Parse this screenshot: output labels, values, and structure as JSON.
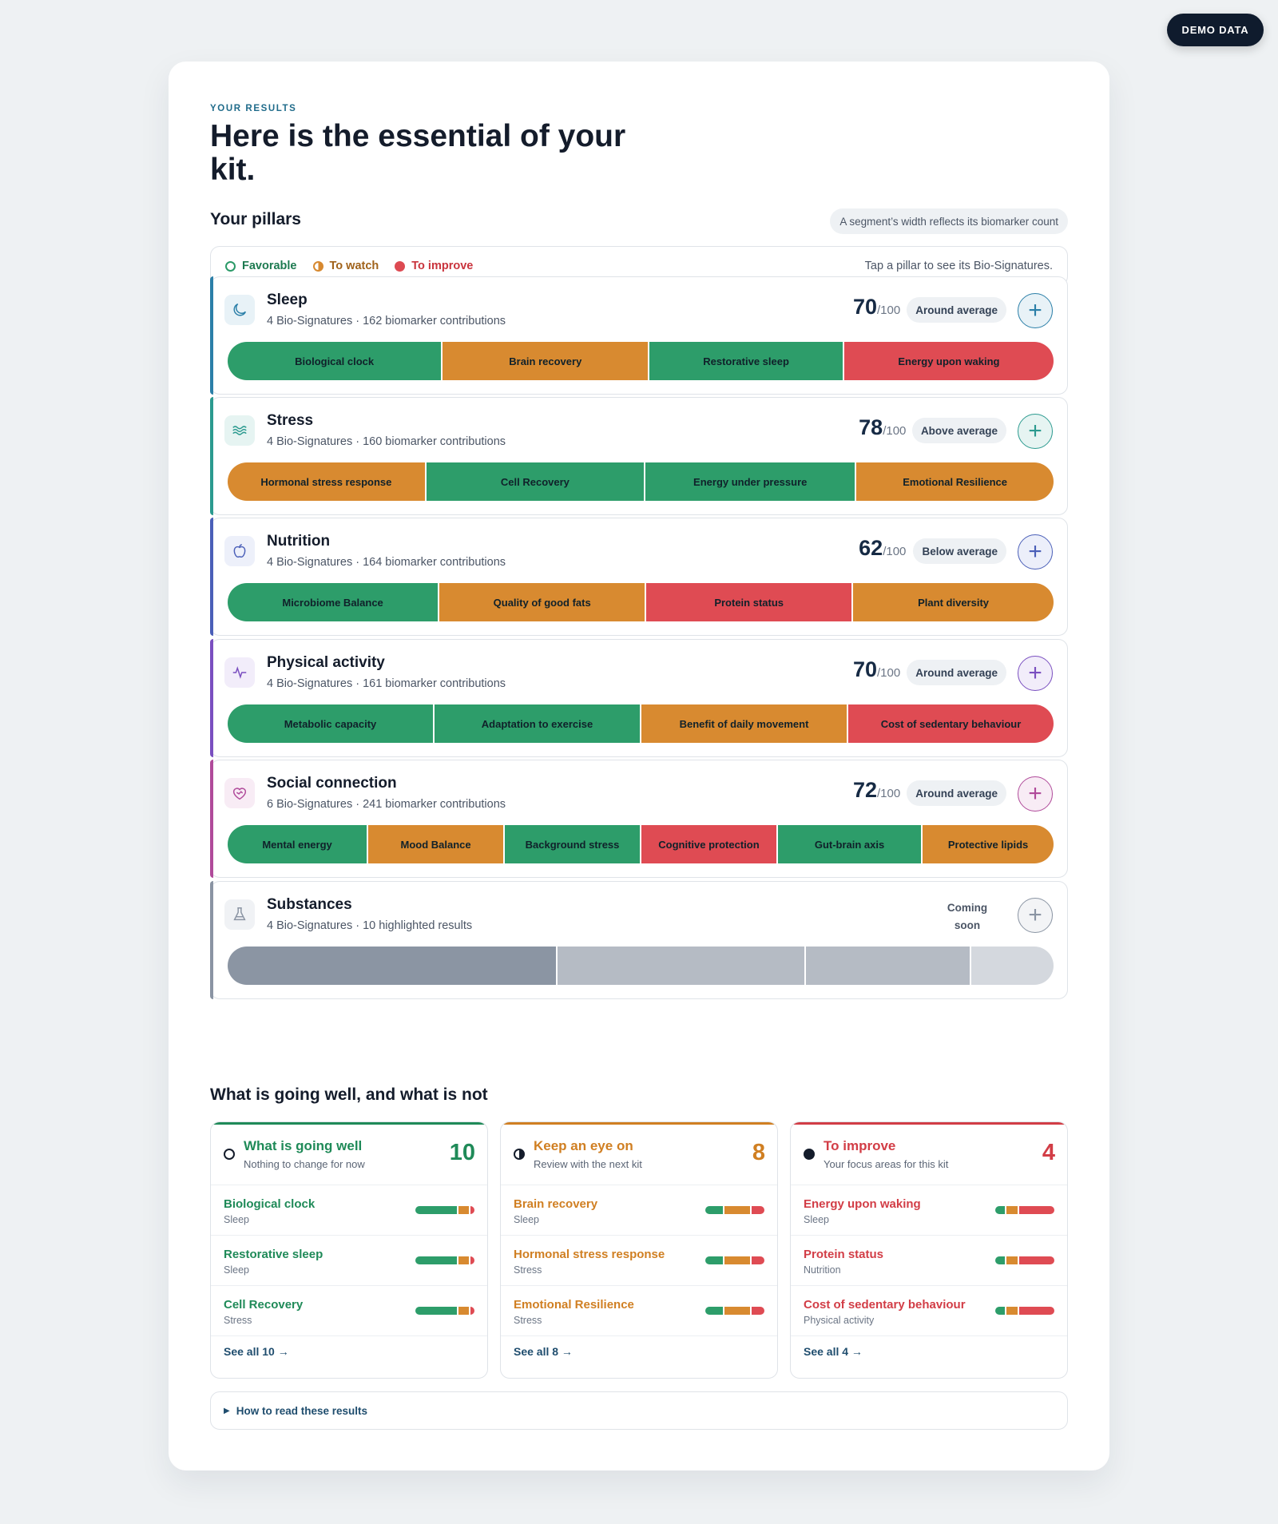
{
  "demo_badge": "DEMO DATA",
  "header": {
    "eyebrow": "YOUR RESULTS",
    "title": "Here is the essential of your kit."
  },
  "pillars_section": {
    "title": "Your pillars",
    "width_hint": "A segment’s width reflects its biomarker count",
    "legend": {
      "favorable": "Favorable",
      "to_watch": "To watch",
      "to_improve": "To improve",
      "tip": "Tap a pillar to see its Bio-Signatures."
    }
  },
  "colors": {
    "favorable": "#2d9d6a",
    "to_watch": "#d88a30",
    "to_improve": "#df4b53",
    "navy": "#0f1b2d"
  },
  "pillars": [
    {
      "name": "Sleep",
      "subtitle": "4 Bio-Signatures · 162 biomarker contributions",
      "score": "70",
      "of": "/100",
      "rating": "Around average",
      "icon": "moon-icon",
      "accent": "#2b7fa8",
      "segments": [
        {
          "label": "Biological clock",
          "status": "favorable",
          "weight": 26
        },
        {
          "label": "Brain recovery",
          "status": "to_watch",
          "weight": 25
        },
        {
          "label": "Restorative sleep",
          "status": "favorable",
          "weight": 23.5
        },
        {
          "label": "Energy upon waking",
          "status": "to_improve",
          "weight": 25.5
        }
      ]
    },
    {
      "name": "Stress",
      "subtitle": "4 Bio-Signatures · 160 biomarker contributions",
      "score": "78",
      "of": "/100",
      "rating": "Above average",
      "icon": "waves-icon",
      "accent": "#2b9a8f",
      "segments": [
        {
          "label": "Hormonal stress response",
          "status": "to_watch",
          "weight": 24
        },
        {
          "label": "Cell Recovery",
          "status": "favorable",
          "weight": 26.5
        },
        {
          "label": "Energy under pressure",
          "status": "favorable",
          "weight": 25.5
        },
        {
          "label": "Emotional Resilience",
          "status": "to_watch",
          "weight": 24
        }
      ]
    },
    {
      "name": "Nutrition",
      "subtitle": "4 Bio-Signatures · 164 biomarker contributions",
      "score": "62",
      "of": "/100",
      "rating": "Below average",
      "icon": "apple-icon",
      "accent": "#4a5fb8",
      "segments": [
        {
          "label": "Microbiome Balance",
          "status": "favorable",
          "weight": 25.6
        },
        {
          "label": "Quality of good fats",
          "status": "to_watch",
          "weight": 25
        },
        {
          "label": "Protein status",
          "status": "to_improve",
          "weight": 25
        },
        {
          "label": "Plant diversity",
          "status": "to_watch",
          "weight": 24.4
        }
      ]
    },
    {
      "name": "Physical activity",
      "subtitle": "4 Bio-Signatures · 161 biomarker contributions",
      "score": "70",
      "of": "/100",
      "rating": "Around average",
      "icon": "pulse-icon",
      "accent": "#7a4fc0",
      "segments": [
        {
          "label": "Metabolic capacity",
          "status": "favorable",
          "weight": 25
        },
        {
          "label": "Adaptation to exercise",
          "status": "favorable",
          "weight": 25
        },
        {
          "label": "Benefit of daily movement",
          "status": "to_watch",
          "weight": 25
        },
        {
          "label": "Cost of sedentary behaviour",
          "status": "to_improve",
          "weight": 25
        }
      ]
    },
    {
      "name": "Social connection",
      "subtitle": "6 Bio-Signatures · 241 biomarker contributions",
      "score": "72",
      "of": "/100",
      "rating": "Around average",
      "icon": "heart-handshake-icon",
      "accent": "#b04a9a",
      "segments": [
        {
          "label": "Mental energy",
          "status": "favorable",
          "weight": 17
        },
        {
          "label": "Mood Balance",
          "status": "to_watch",
          "weight": 16.5
        },
        {
          "label": "Background stress",
          "status": "favorable",
          "weight": 16.5
        },
        {
          "label": "Cognitive protection",
          "status": "to_improve",
          "weight": 16.5
        },
        {
          "label": "Gut-brain axis",
          "status": "favorable",
          "weight": 17.5
        },
        {
          "label": "Protective lipids",
          "status": "to_watch",
          "weight": 16
        }
      ]
    },
    {
      "name": "Substances",
      "subtitle": "4 Bio-Signatures · 10 highlighted results",
      "status_text": "Coming soon",
      "icon": "flask-icon",
      "accent": "#8a94a3",
      "segments": [
        {
          "label": "",
          "status": "grey1",
          "weight": 40
        },
        {
          "label": "",
          "status": "grey2",
          "weight": 30
        },
        {
          "label": "",
          "status": "grey3",
          "weight": 20
        },
        {
          "label": "",
          "status": "grey4",
          "weight": 10
        }
      ]
    }
  ],
  "summary_section": {
    "title": "What is going well, and what is not",
    "columns": [
      {
        "key": "going_well",
        "title": "What is going well",
        "subtitle": "Nothing to change for now",
        "count": "10",
        "color": "#1f8a58",
        "items": [
          {
            "name": "Biological clock",
            "pillar": "Sleep"
          },
          {
            "name": "Restorative sleep",
            "pillar": "Sleep"
          },
          {
            "name": "Cell Recovery",
            "pillar": "Stress"
          }
        ],
        "see_all": "See all 10 →"
      },
      {
        "key": "keep_eye",
        "title": "Keep an eye on",
        "subtitle": "Review with the next kit",
        "count": "8",
        "color": "#d07f22",
        "items": [
          {
            "name": "Brain recovery",
            "pillar": "Sleep"
          },
          {
            "name": "Hormonal stress response",
            "pillar": "Stress"
          },
          {
            "name": "Emotional Resilience",
            "pillar": "Stress"
          }
        ],
        "see_all": "See all 8 →"
      },
      {
        "key": "to_improve",
        "title": "To improve",
        "subtitle": "Your focus areas for this kit",
        "count": "4",
        "color": "#d23d46",
        "items": [
          {
            "name": "Energy upon waking",
            "pillar": "Sleep"
          },
          {
            "name": "Protein status",
            "pillar": "Nutrition"
          },
          {
            "name": "Cost of sedentary behaviour",
            "pillar": "Physical activity"
          }
        ],
        "see_all": "See all 4 →"
      }
    ]
  },
  "how_to_read": "How to read these results"
}
